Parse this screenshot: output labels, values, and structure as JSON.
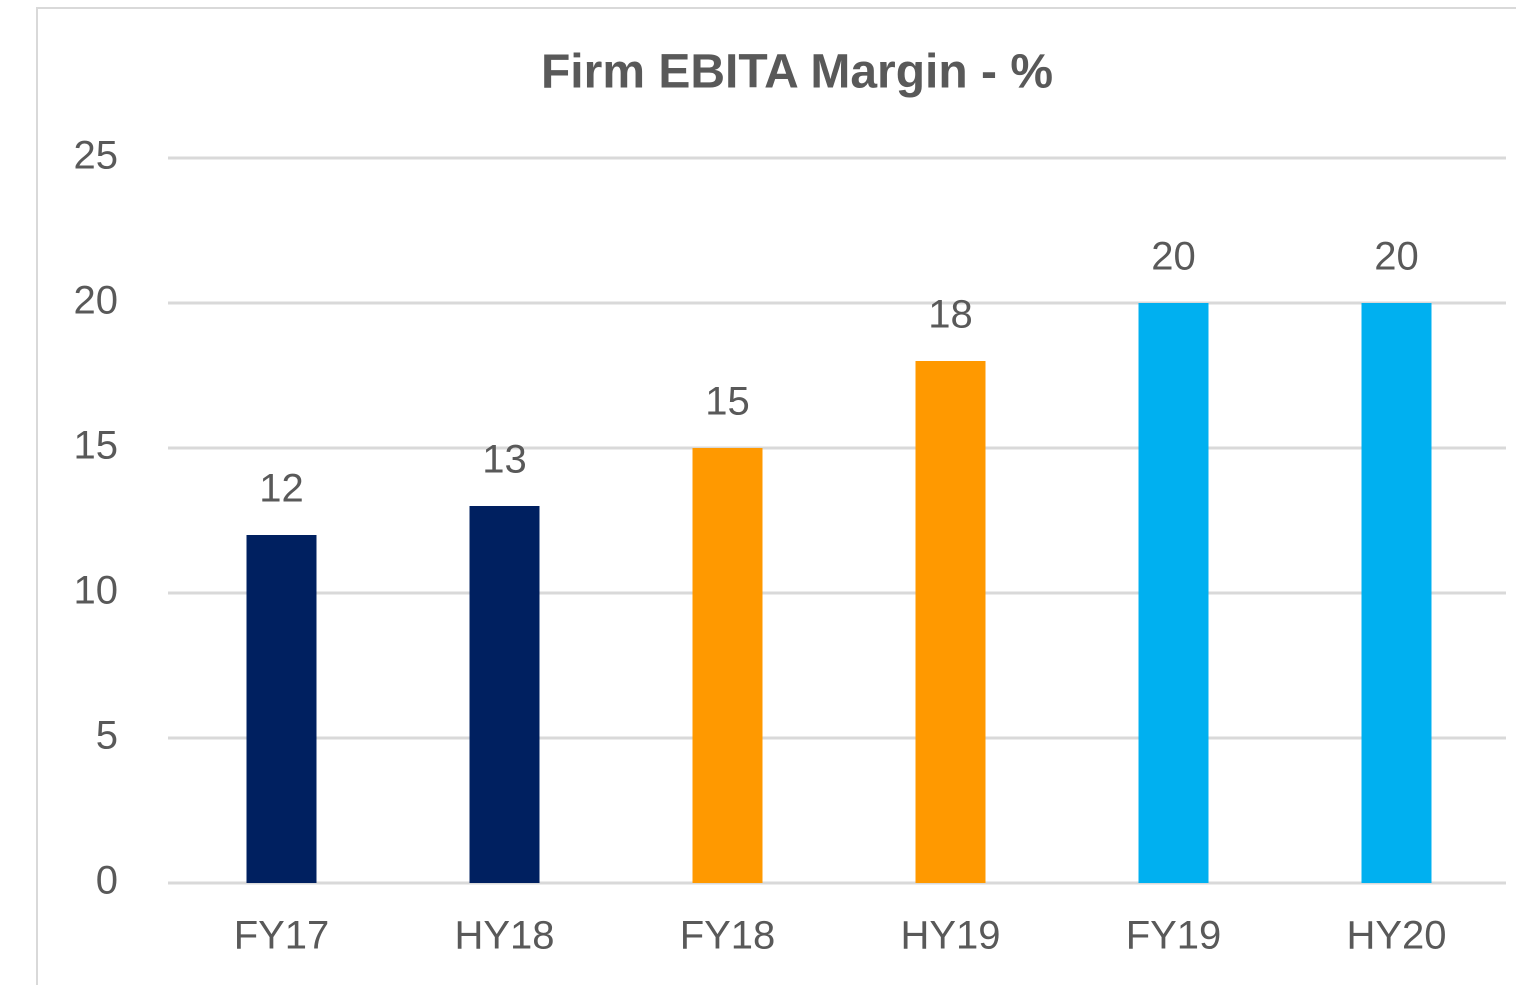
{
  "chart_data": {
    "type": "bar",
    "title": "Firm EBITA Margin - %",
    "categories": [
      "FY17",
      "HY18",
      "FY18",
      "HY19",
      "FY19",
      "HY20"
    ],
    "values": [
      12,
      13,
      15,
      18,
      20,
      20
    ],
    "colors": [
      "#002060",
      "#002060",
      "#ff9900",
      "#ff9900",
      "#00b0f0",
      "#00b0f0"
    ],
    "ylim": [
      0,
      25
    ],
    "yticks": [
      0,
      5,
      10,
      15,
      20,
      25
    ],
    "grid": true
  }
}
